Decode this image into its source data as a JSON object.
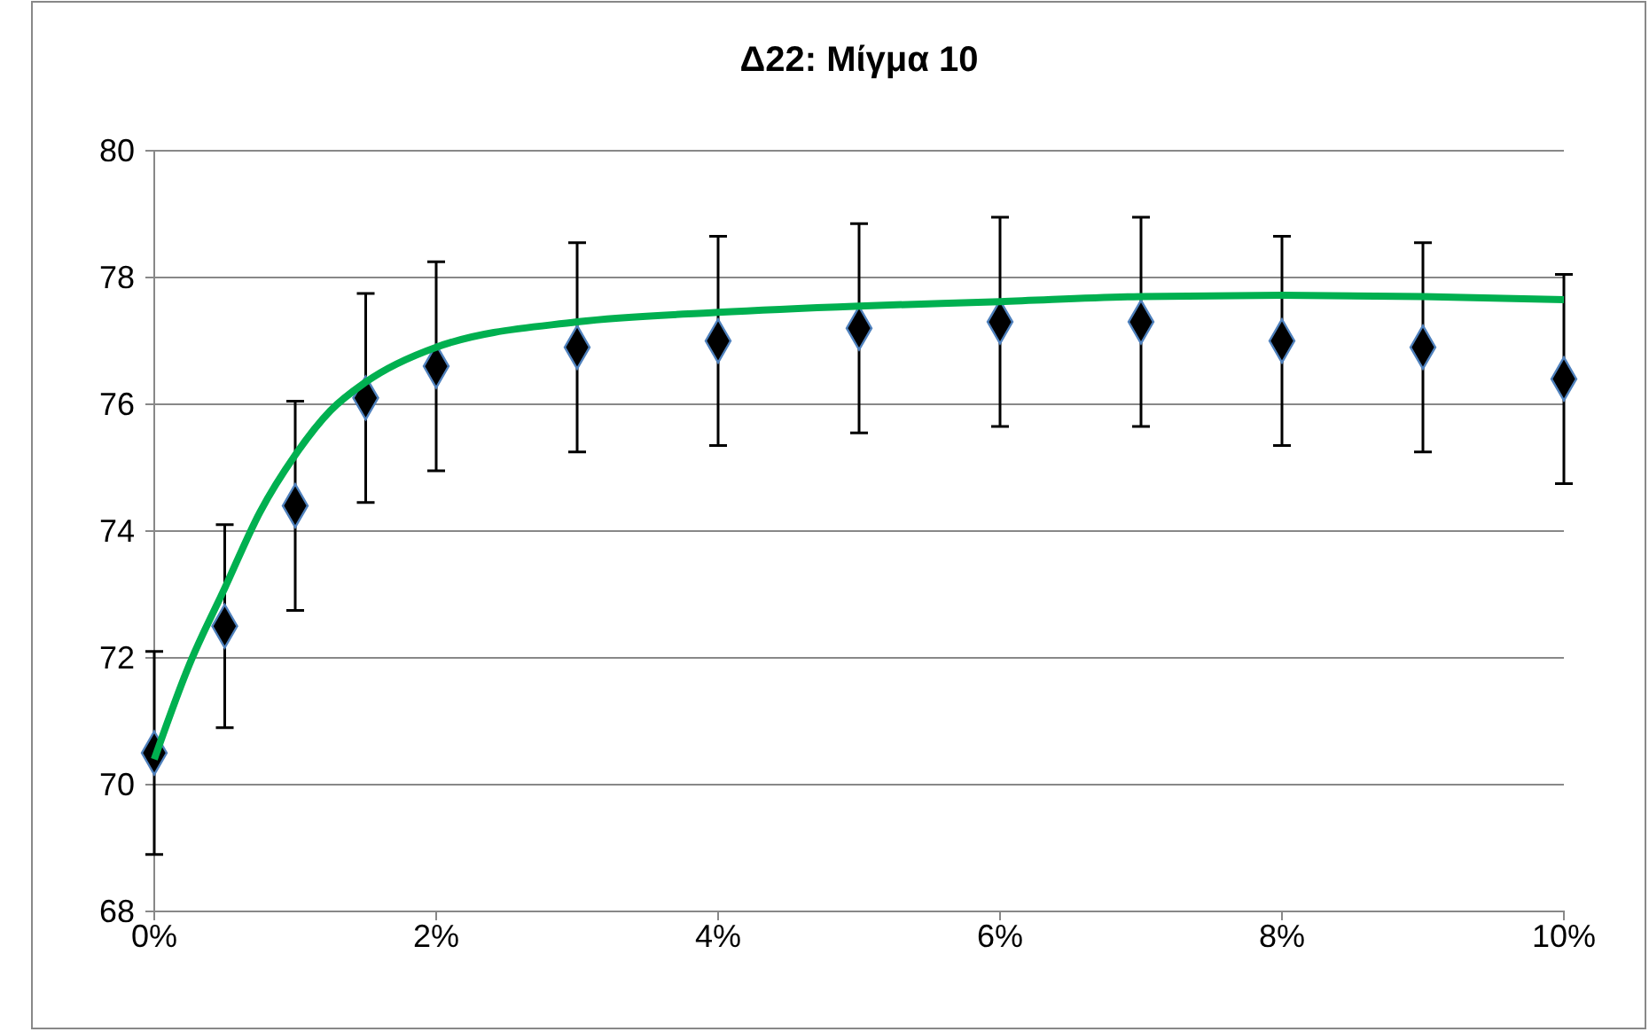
{
  "chart_data": {
    "type": "scatter",
    "title": "Δ22: Μίγμα 10",
    "xlim": [
      0,
      10
    ],
    "xticks": [
      {
        "value": 0,
        "label": "0%"
      },
      {
        "value": 2,
        "label": "2%"
      },
      {
        "value": 4,
        "label": "4%"
      },
      {
        "value": 6,
        "label": "6%"
      },
      {
        "value": 8,
        "label": "8%"
      },
      {
        "value": 10,
        "label": "10%"
      }
    ],
    "ylim": [
      68,
      80
    ],
    "yticks": [
      68,
      70,
      72,
      74,
      76,
      78,
      80
    ],
    "grid": "y",
    "series": [
      {
        "marker": "diamond",
        "color": "#000000",
        "x": [
          0,
          0.5,
          1,
          1.5,
          2,
          3,
          4,
          5,
          6,
          7,
          8,
          9,
          10
        ],
        "values": [
          70.5,
          72.5,
          74.4,
          76.1,
          76.6,
          76.9,
          77.0,
          77.2,
          77.3,
          77.3,
          77.0,
          76.9,
          76.4
        ],
        "errors": [
          1.6,
          1.6,
          1.65,
          1.65,
          1.65,
          1.65,
          1.65,
          1.65,
          1.65,
          1.65,
          1.65,
          1.65,
          1.65
        ]
      },
      {
        "type": "line",
        "color": "#00b050",
        "x": [
          0,
          0.25,
          0.5,
          0.75,
          1,
          1.25,
          1.5,
          2,
          3,
          4,
          5,
          6,
          7,
          8,
          9,
          10
        ],
        "values": [
          70.4,
          71.9,
          73.1,
          74.3,
          75.2,
          75.9,
          76.35,
          76.9,
          77.3,
          77.45,
          77.55,
          77.62,
          77.7,
          77.72,
          77.7,
          77.65
        ]
      }
    ]
  }
}
